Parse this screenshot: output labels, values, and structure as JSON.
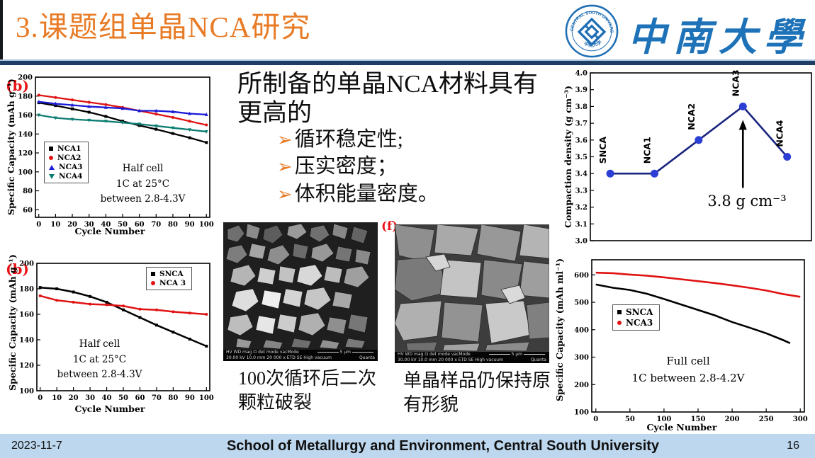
{
  "slide": {
    "title": "3.课题组单晶NCA研究",
    "logo": {
      "ring_text_top": "CENTRAL SOUTH UNIVERSITY",
      "ring_text_bottom": "中南大学",
      "university_cn": "中南大學"
    },
    "footer": {
      "date": "2023-11-7",
      "center": "School of Metallurgy and Environment, Central South University",
      "page": "16"
    }
  },
  "content": {
    "heading_line1": "所制备的单晶NCA材料具有",
    "heading_line2": "更高的",
    "bullet_marker": "➢",
    "bullets": [
      {
        "label": "循环稳定性;"
      },
      {
        "label": "压实密度；"
      },
      {
        "label": "体积能量密度。"
      }
    ],
    "captions": {
      "left_line1": "100次循环后二次",
      "left_line2": "颗粒破裂",
      "right_line1": "单晶样品仍保持原",
      "right_line2": "有形貌"
    },
    "sem": {
      "panel_label_f": "(f)",
      "info_row1": "HV    WD    mag ⊡    det    mode    vacMode",
      "info_row2": "30.00 kV  10.0 mm  20 000 x  ETD  SE  High vacuum",
      "scalebar": "5 μm",
      "brand": "Quanta"
    }
  },
  "chart_data": [
    {
      "id": "half_cell_all",
      "type": "line",
      "panel_label": "(b)",
      "xlabel": "Cycle Number",
      "ylabel": "Specific Capacity (mAh g⁻¹)",
      "title_note": [
        "Half cell",
        "1C at 25°C",
        "between 2.8-4.3V"
      ],
      "xlim": [
        -2,
        102
      ],
      "ylim": [
        52,
        200
      ],
      "xticks": [
        0,
        10,
        20,
        30,
        40,
        50,
        60,
        70,
        80,
        90,
        100
      ],
      "yticks": [
        60,
        80,
        100,
        120,
        140,
        160,
        180,
        200
      ],
      "legend_position": "inside-left",
      "series": [
        {
          "name": "NCA1",
          "color": "#000000",
          "marker": "square",
          "msize": 2.0,
          "lw": 2.3,
          "x": [
            0,
            10,
            20,
            30,
            40,
            50,
            60,
            70,
            80,
            90,
            100
          ],
          "y": [
            173,
            170,
            166.5,
            163,
            158.5,
            153.5,
            149,
            145,
            140.5,
            136,
            131
          ]
        },
        {
          "name": "NCA2",
          "color": "#e01212",
          "marker": "circle",
          "msize": 2.0,
          "lw": 2.3,
          "x": [
            0,
            10,
            20,
            30,
            40,
            50,
            60,
            70,
            80,
            90,
            100
          ],
          "y": [
            181,
            178.5,
            176,
            173.5,
            171,
            168,
            164.5,
            161,
            157.5,
            153.5,
            149.5
          ]
        },
        {
          "name": "NCA3",
          "color": "#1b1bd8",
          "marker": "tri-up",
          "msize": 2.0,
          "lw": 2.3,
          "x": [
            0,
            10,
            20,
            30,
            40,
            50,
            60,
            70,
            80,
            90,
            100
          ],
          "y": [
            174,
            172,
            170.5,
            169,
            168,
            167,
            164.5,
            164.5,
            163.5,
            161.5,
            160.5
          ]
        },
        {
          "name": "NCA4",
          "color": "#0d7d72",
          "marker": "tri-down",
          "msize": 2.0,
          "lw": 2.3,
          "x": [
            0,
            10,
            20,
            30,
            40,
            50,
            60,
            70,
            80,
            90,
            100
          ],
          "y": [
            160,
            157,
            155.5,
            154.5,
            153.5,
            152,
            150.5,
            148.5,
            146.5,
            144.5,
            142.5
          ]
        }
      ]
    },
    {
      "id": "half_cell_pair",
      "type": "line",
      "panel_label": "(b)",
      "xlabel": "Cycle Number",
      "ylabel": "Specific Capacity (mAh g⁻¹)",
      "title_note": [
        "Half cell",
        "1C at 25°C",
        "between 2.8-4.3V"
      ],
      "xlim": [
        -2,
        102
      ],
      "ylim": [
        100,
        200
      ],
      "xticks": [
        0,
        10,
        20,
        30,
        40,
        50,
        60,
        70,
        80,
        90,
        100
      ],
      "yticks": [
        100,
        120,
        140,
        160,
        180,
        200
      ],
      "legend_position": "inside-top-right",
      "series": [
        {
          "name": "SNCA",
          "color": "#000000",
          "marker": "square",
          "msize": 2.0,
          "lw": 2.5,
          "x": [
            0,
            10,
            20,
            30,
            40,
            50,
            60,
            70,
            80,
            90,
            100
          ],
          "y": [
            181,
            180,
            177.5,
            174,
            169.5,
            163.5,
            157.5,
            151.5,
            146,
            140.5,
            135
          ]
        },
        {
          "name": "NCA 3",
          "color": "#e01212",
          "marker": "circle",
          "msize": 2.0,
          "lw": 2.5,
          "x": [
            0,
            10,
            20,
            30,
            40,
            50,
            60,
            70,
            80,
            90,
            100
          ],
          "y": [
            174.5,
            171,
            169.5,
            168,
            167.5,
            166.5,
            164,
            163.5,
            162,
            161,
            160
          ]
        }
      ]
    },
    {
      "id": "compaction",
      "type": "scatter-line",
      "xlabel": "",
      "ylabel": "Compaction density (g cm⁻³)",
      "annotation": "3.8 g cm⁻³",
      "categories": [
        "SNCA",
        "NCA1",
        "NCA2",
        "NCA3",
        "NCA4"
      ],
      "values": [
        3.4,
        3.4,
        3.6,
        3.8,
        3.5
      ],
      "xlim": [
        -0.45,
        4.55
      ],
      "ylim": [
        3.0,
        4.0
      ],
      "xticks": [],
      "yticks": [
        3.0,
        3.1,
        3.2,
        3.3,
        3.4,
        3.5,
        3.6,
        3.7,
        3.8,
        3.9,
        4.0
      ],
      "ytick_fmt": "fixed1",
      "arrow": {
        "x": 3,
        "y_from": 3.315,
        "y_to": 3.72
      },
      "series": [
        {
          "name": "Compaction density",
          "color": "#2b3fd4",
          "line_color": "#18247e",
          "marker": "circle",
          "msize": 5.5,
          "lw": 2.6,
          "x": [
            0,
            1,
            2,
            3,
            4
          ],
          "y": [
            3.4,
            3.4,
            3.6,
            3.8,
            3.5
          ],
          "point_labels": [
            "SNCA",
            "NCA1",
            "NCA2",
            "NCA3",
            "NCA4"
          ]
        }
      ]
    },
    {
      "id": "full_cell",
      "type": "line",
      "xlabel": "Cycle Number",
      "ylabel": "Specific Capacity (mAh ml⁻¹)",
      "title_note": [
        "Full cell",
        "1C between 2.8-4.2V"
      ],
      "xlim": [
        -6,
        306
      ],
      "ylim": [
        100,
        655
      ],
      "xticks": [
        0,
        50,
        100,
        150,
        200,
        250,
        300
      ],
      "yticks": [
        100,
        200,
        300,
        400,
        500,
        600
      ],
      "legend_position": "inside-left",
      "legend": [
        {
          "name": "SNCA",
          "color": "#000000",
          "marker": "square"
        },
        {
          "name": "NCA3",
          "color": "#e01212",
          "marker": "circle"
        }
      ],
      "series": [
        {
          "name": "SNCA",
          "color": "#000000",
          "marker": "none",
          "lw": 2.6,
          "x": [
            0,
            25,
            50,
            75,
            100,
            125,
            150,
            175,
            200,
            225,
            250,
            275,
            285
          ],
          "y": [
            565,
            553,
            545,
            531,
            512,
            492,
            472,
            452,
            428,
            408,
            387,
            362,
            351
          ]
        },
        {
          "name": "NCA3",
          "color": "#e01212",
          "marker": "none",
          "lw": 2.6,
          "x": [
            0,
            25,
            50,
            75,
            100,
            125,
            150,
            175,
            200,
            225,
            250,
            275,
            300
          ],
          "y": [
            608,
            606,
            601,
            597,
            591,
            584,
            577,
            570,
            562,
            553,
            543,
            530,
            520
          ]
        }
      ]
    }
  ]
}
